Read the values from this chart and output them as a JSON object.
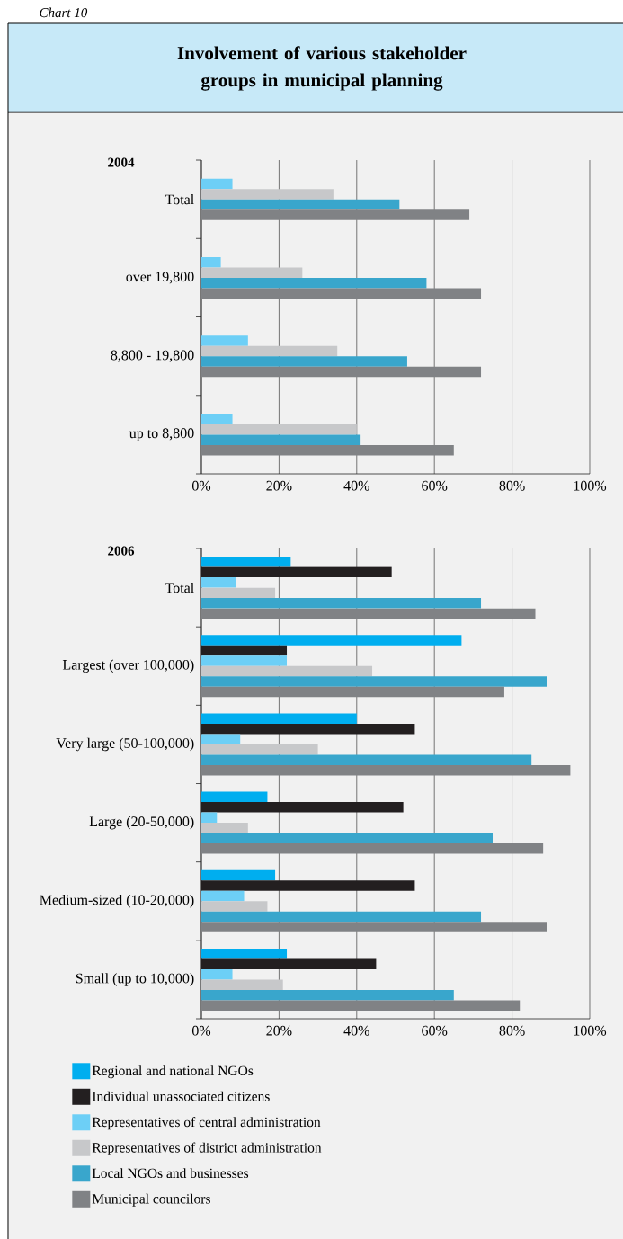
{
  "chart_data": [
    {
      "type": "other",
      "title": "Involvement of various stakeholder groups in municipal planning",
      "annotations": [
        "Chart 10"
      ]
    },
    {
      "type": "bar",
      "orientation": "horizontal",
      "title": "2004",
      "categories": [
        "Total",
        "over 19,800",
        "8,800 - 19,800",
        "up to 8,800"
      ],
      "series": [
        {
          "color": "#6dcff6",
          "values": [
            8,
            5,
            12,
            8
          ]
        },
        {
          "color": "#c7c8ca",
          "values": [
            34,
            26,
            35,
            40
          ]
        },
        {
          "color": "#39a6cc",
          "values": [
            51,
            58,
            53,
            41
          ]
        },
        {
          "color": "#808285",
          "values": [
            69,
            72,
            72,
            65
          ]
        }
      ],
      "xlim": [
        0,
        100
      ],
      "xticks": [
        {
          "value": 0,
          "label": "0%"
        },
        {
          "value": 20,
          "label": "20%"
        },
        {
          "value": 40,
          "label": "40%"
        },
        {
          "value": 60,
          "label": "60%"
        },
        {
          "value": 80,
          "label": "80%"
        },
        {
          "value": 100,
          "label": "100%"
        }
      ],
      "grid": "x"
    },
    {
      "type": "bar",
      "orientation": "horizontal",
      "title": "2006",
      "categories": [
        "Total",
        "Largest (over 100,000)",
        "Very large (50-100,000)",
        "Large (20-50,000)",
        "Medium-sized (10-20,000)",
        "Small (up to 10,000)"
      ],
      "series": [
        {
          "name": "Regional and national NGOs",
          "color": "#00aeef",
          "values": [
            23,
            67,
            40,
            17,
            19,
            22
          ]
        },
        {
          "name": "Individual unassociated citizens",
          "color": "#231f20",
          "values": [
            49,
            22,
            55,
            52,
            55,
            45
          ]
        },
        {
          "name": "Representatives of central administration",
          "color": "#6dcff6",
          "values": [
            9,
            22,
            10,
            4,
            11,
            8
          ]
        },
        {
          "name": "Representatives of district administration",
          "color": "#c7c8ca",
          "values": [
            19,
            44,
            30,
            12,
            17,
            21
          ]
        },
        {
          "name": "Local NGOs and businesses",
          "color": "#39a6cc",
          "values": [
            72,
            89,
            85,
            75,
            72,
            65
          ]
        },
        {
          "name": "Municipal councilors",
          "color": "#808285",
          "values": [
            86,
            78,
            95,
            88,
            89,
            82
          ]
        }
      ],
      "xlim": [
        0,
        100
      ],
      "xticks": [
        {
          "value": 0,
          "label": "0%"
        },
        {
          "value": 20,
          "label": "20%"
        },
        {
          "value": 40,
          "label": "40%"
        },
        {
          "value": 60,
          "label": "60%"
        },
        {
          "value": 80,
          "label": "80%"
        },
        {
          "value": 100,
          "label": "100%"
        }
      ],
      "grid": "x",
      "legend": "bottom"
    }
  ]
}
